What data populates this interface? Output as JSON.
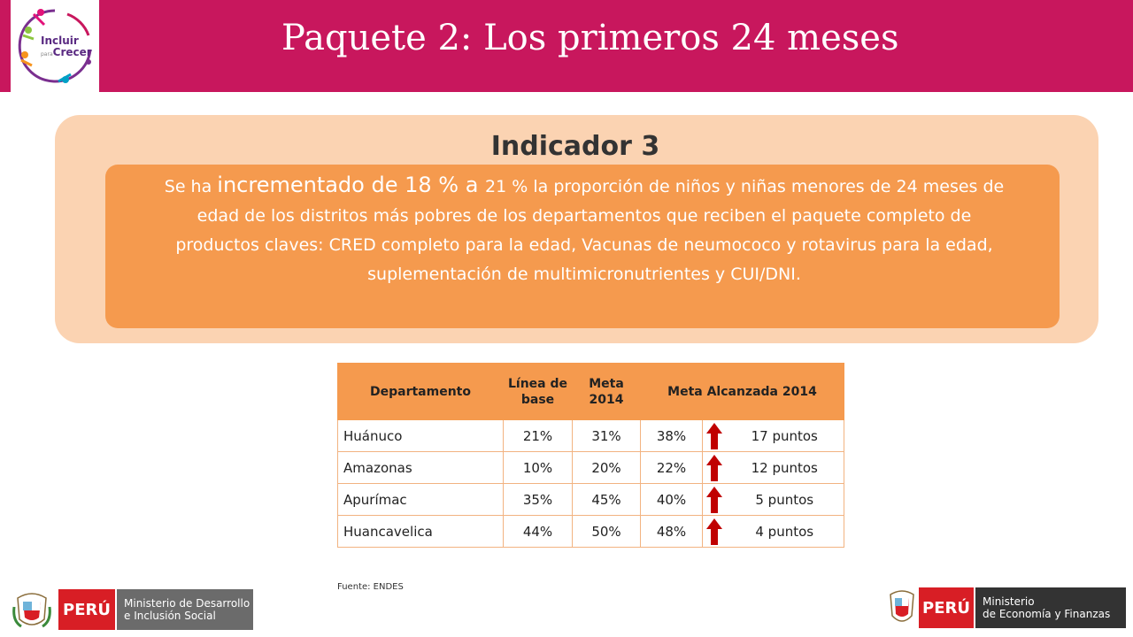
{
  "header": {
    "title": "Paquete 2: Los primeros 24 meses",
    "logo_text_line1": "Incluir",
    "logo_text_small": "para",
    "logo_text_line2": "Crecer"
  },
  "indicator": {
    "title": "Indicador 3",
    "text_part1": "Se ha ",
    "text_big": "incrementado de 18 % a ",
    "text_part2": "21 % la proporción de niños y niñas menores de 24 meses de edad de los distritos más pobres de los departamentos que reciben el paquete completo de productos claves: CRED completo para la edad, Vacunas de neumococo y rotavirus para la edad, suplementación de multimicronutrientes y CUI/DNI."
  },
  "table": {
    "headers": {
      "departamento": "Departamento",
      "linea_base": "Línea de base",
      "meta": "Meta 2014",
      "alcanzada": "Meta Alcanzada  2014"
    },
    "rows": [
      {
        "dept": "Huánuco",
        "base": "21%",
        "meta": "31%",
        "alcanzada": "38%",
        "puntos": "17 puntos"
      },
      {
        "dept": "Amazonas",
        "base": "10%",
        "meta": "20%",
        "alcanzada": "22%",
        "puntos": "12 puntos"
      },
      {
        "dept": "Apurímac",
        "base": "35%",
        "meta": "45%",
        "alcanzada": "40%",
        "puntos": "5 puntos"
      },
      {
        "dept": "Huancavelica",
        "base": "44%",
        "meta": "50%",
        "alcanzada": "48%",
        "puntos": "4 puntos"
      }
    ],
    "arrow_icon": "up-arrow-icon",
    "arrow_color": "#c00000"
  },
  "source": "Fuente: ENDES",
  "footer": {
    "left_peru": "PERÚ",
    "left_ministry_line1": "Ministerio de Desarrollo",
    "left_ministry_line2": "e Inclusión Social",
    "right_peru": "PERÚ",
    "right_ministry_line1": "Ministerio",
    "right_ministry_line2": "de Economía y Finanzas"
  },
  "colors": {
    "header": "#c8175d",
    "panel_outer": "#fbd3b2",
    "panel_inner": "#f59a4e",
    "peru_red": "#d81e25",
    "ministry_gray": "#6b6b6b",
    "ministry_dark": "#333333"
  }
}
